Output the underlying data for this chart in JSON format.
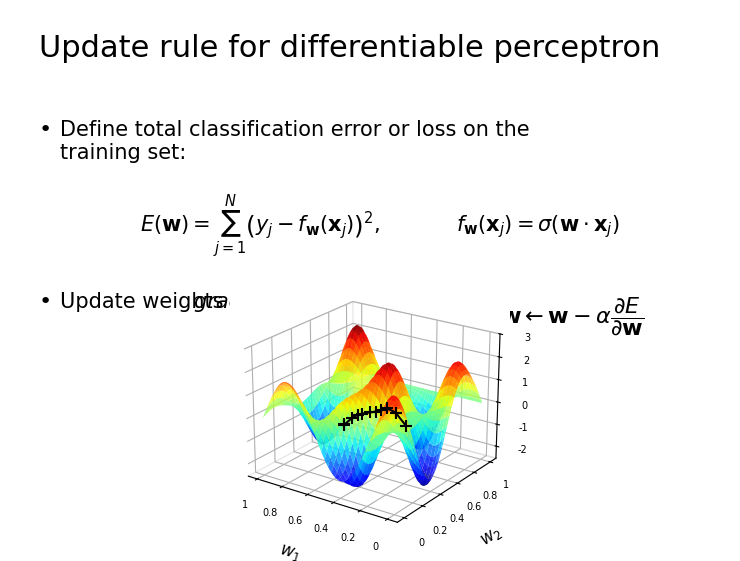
{
  "title": "Update rule for differentiable perceptron",
  "bullet1": "Define total classification error or loss on the\ntraining set:",
  "formula1": "$E(\\mathbf{w}) = \\sum_{j=1}^{N}\\left(y_j - f_\\mathbf{w}(\\mathbf{x}_j)\\right)^2,$",
  "formula2": "$f_\\mathbf{w}(\\mathbf{x}_j) = \\sigma(\\mathbf{w} \\cdot \\mathbf{x}_j)$",
  "bullet2_plain": "Update weights by ",
  "bullet2_italic": "gradient descent",
  "bullet2_colon": ":",
  "formula3": "$\\mathbf{w} \\leftarrow \\mathbf{w} - \\alpha \\dfrac{\\partial E}{\\partial \\mathbf{w}}$",
  "background_color": "#ffffff",
  "title_fontsize": 22,
  "text_fontsize": 15,
  "formula_fontsize": 14,
  "w1_label": "$w_1$",
  "w2_label": "$w_2$",
  "surface_alpha": 0.85
}
